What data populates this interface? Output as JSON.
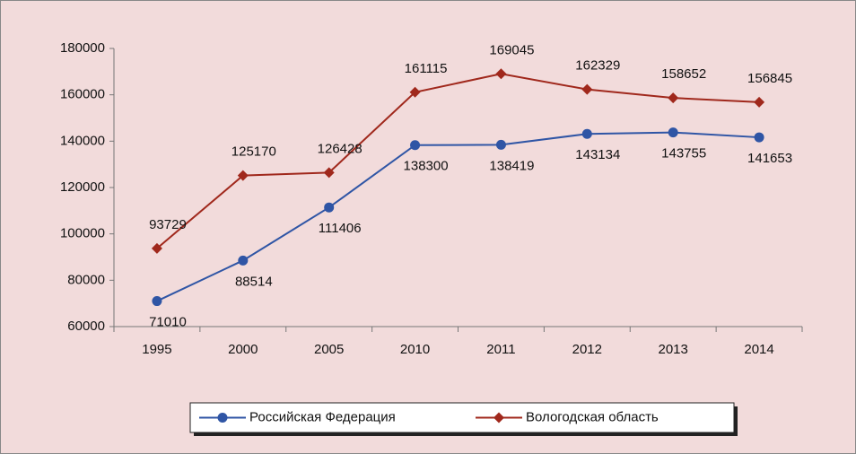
{
  "chart_data": {
    "type": "line",
    "categories": [
      "1995",
      "2000",
      "2005",
      "2010",
      "2011",
      "2012",
      "2013",
      "2014"
    ],
    "series": [
      {
        "name": "Российская Федерация",
        "color": "#2f55a5",
        "marker": "circle",
        "label_position": "below",
        "values": [
          71010,
          88514,
          111406,
          138300,
          138419,
          143134,
          143755,
          141653
        ]
      },
      {
        "name": "Вологодская область",
        "color": "#a0281c",
        "marker": "diamond",
        "label_position": "above",
        "values": [
          93729,
          125170,
          126428,
          161115,
          169045,
          162329,
          158652,
          156845
        ]
      }
    ],
    "ylim": [
      60000,
      180000
    ],
    "yticks": [
      60000,
      80000,
      100000,
      120000,
      140000,
      160000,
      180000
    ],
    "grid": false,
    "legend": "bottom"
  }
}
